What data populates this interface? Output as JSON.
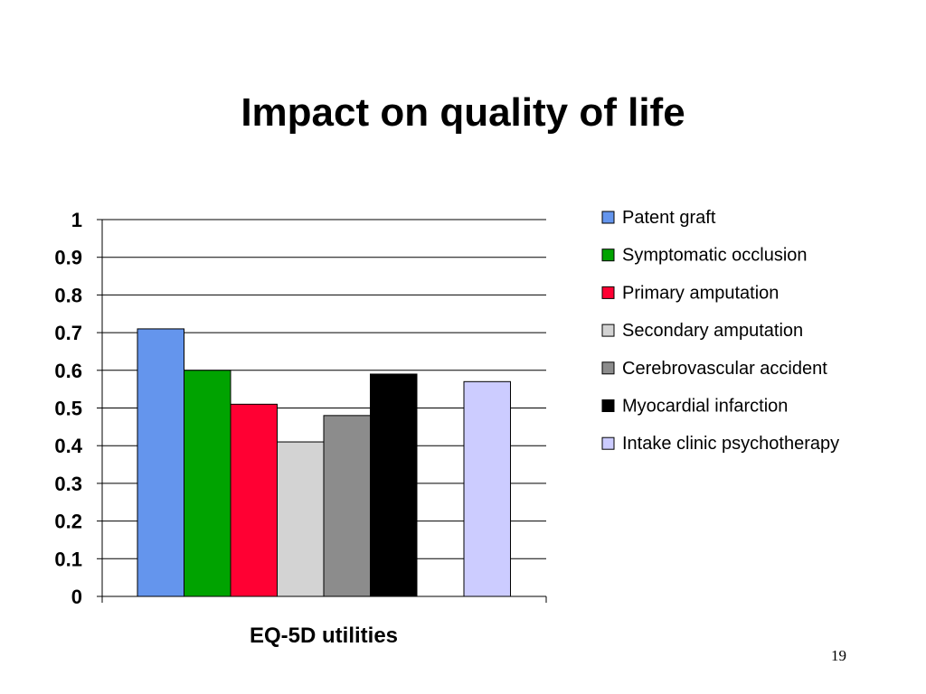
{
  "slide": {
    "title": "Impact on quality of life",
    "page_number": "19"
  },
  "chart_data": {
    "type": "bar",
    "title": "",
    "xlabel": "EQ-5D utilities",
    "ylabel": "",
    "ylim": [
      0,
      1
    ],
    "y_ticks": [
      "0",
      "0.1",
      "0.2",
      "0.3",
      "0.4",
      "0.5",
      "0.6",
      "0.7",
      "0.8",
      "0.9",
      "1"
    ],
    "grid": true,
    "legend_position": "right",
    "categories": [
      "EQ-5D utilities"
    ],
    "series": [
      {
        "name": "Patent graft",
        "values": [
          0.71
        ],
        "color": "#6495ED"
      },
      {
        "name": "Symptomatic occlusion",
        "values": [
          0.6
        ],
        "color": "#00A300"
      },
      {
        "name": "Primary amputation",
        "values": [
          0.51
        ],
        "color": "#FF0033"
      },
      {
        "name": "Secondary amputation",
        "values": [
          0.41
        ],
        "color": "#D3D3D3"
      },
      {
        "name": "Cerebrovascular accident",
        "values": [
          0.48
        ],
        "color": "#8C8C8C"
      },
      {
        "name": "Myocardial infarction",
        "values": [
          0.59
        ],
        "color": "#000000"
      },
      {
        "name": "Intake clinic psychotherapy",
        "values": [
          0.57
        ],
        "color": "#CCCCFF"
      }
    ]
  }
}
